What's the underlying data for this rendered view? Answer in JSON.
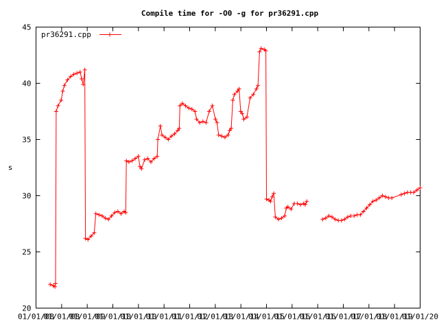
{
  "chart_data": {
    "type": "line",
    "title": "Compile time for -O0 -g for pr36291.cpp",
    "ylabel": "s",
    "xlabel": "",
    "ylim": [
      20,
      45
    ],
    "xlim": [
      0,
      12.2
    ],
    "y_ticks": [
      20,
      25,
      30,
      35,
      40,
      45
    ],
    "x_tick_labels": [
      "01/01/08",
      "01/01/08",
      "01/01/09",
      "01/01/10",
      "01/01/10",
      "01/01/11",
      "01/01/12",
      "01/01/13",
      "01/01/14",
      "01/01/15",
      "01/01/16",
      "01/01/16",
      "01/01/17",
      "01/01/18",
      "01/01/19",
      "01/01/20"
    ],
    "grid": false,
    "legend_position": "top-left",
    "series": [
      {
        "name": "pr36291.cpp",
        "color": "#ff0000",
        "segments": [
          [
            [
              0.45,
              22.1
            ],
            [
              0.55,
              22.0
            ],
            [
              0.6,
              21.9
            ],
            [
              0.62,
              22.2
            ],
            [
              0.64,
              37.5
            ],
            [
              0.7,
              38.0
            ],
            [
              0.8,
              38.5
            ],
            [
              0.85,
              39.3
            ],
            [
              0.9,
              39.8
            ],
            [
              1.0,
              40.3
            ],
            [
              1.1,
              40.6
            ],
            [
              1.2,
              40.8
            ],
            [
              1.3,
              40.9
            ],
            [
              1.4,
              41.0
            ],
            [
              1.45,
              40.4
            ],
            [
              1.5,
              39.9
            ],
            [
              1.55,
              41.2
            ],
            [
              1.57,
              26.2
            ],
            [
              1.65,
              26.1
            ],
            [
              1.75,
              26.4
            ],
            [
              1.85,
              26.7
            ],
            [
              1.9,
              28.4
            ],
            [
              2.0,
              28.3
            ],
            [
              2.1,
              28.2
            ],
            [
              2.2,
              28.0
            ],
            [
              2.3,
              27.9
            ],
            [
              2.4,
              28.2
            ],
            [
              2.5,
              28.5
            ],
            [
              2.6,
              28.6
            ],
            [
              2.7,
              28.4
            ],
            [
              2.8,
              28.6
            ],
            [
              2.85,
              28.5
            ],
            [
              2.87,
              33.1
            ],
            [
              2.95,
              33.0
            ],
            [
              3.05,
              33.1
            ],
            [
              3.15,
              33.3
            ],
            [
              3.25,
              33.5
            ],
            [
              3.3,
              32.6
            ],
            [
              3.35,
              32.4
            ],
            [
              3.45,
              33.2
            ],
            [
              3.55,
              33.3
            ],
            [
              3.65,
              33.0
            ],
            [
              3.75,
              33.3
            ],
            [
              3.85,
              33.5
            ],
            [
              3.87,
              35.0
            ],
            [
              3.95,
              36.2
            ],
            [
              4.0,
              35.4
            ],
            [
              4.1,
              35.2
            ],
            [
              4.2,
              35.0
            ],
            [
              4.3,
              35.3
            ],
            [
              4.4,
              35.5
            ],
            [
              4.5,
              35.8
            ],
            [
              4.55,
              36.0
            ],
            [
              4.57,
              38.0
            ],
            [
              4.65,
              38.2
            ],
            [
              4.75,
              38.0
            ],
            [
              4.85,
              37.8
            ],
            [
              4.95,
              37.7
            ],
            [
              5.05,
              37.5
            ],
            [
              5.1,
              36.8
            ],
            [
              5.2,
              36.5
            ],
            [
              5.3,
              36.6
            ],
            [
              5.4,
              36.5
            ],
            [
              5.5,
              37.5
            ],
            [
              5.6,
              38.0
            ],
            [
              5.7,
              36.8
            ],
            [
              5.75,
              36.5
            ],
            [
              5.8,
              35.4
            ],
            [
              5.9,
              35.3
            ],
            [
              6.0,
              35.2
            ],
            [
              6.1,
              35.4
            ],
            [
              6.15,
              35.8
            ],
            [
              6.2,
              36.0
            ],
            [
              6.25,
              38.5
            ],
            [
              6.3,
              39.0
            ],
            [
              6.4,
              39.3
            ],
            [
              6.45,
              39.5
            ],
            [
              6.5,
              37.5
            ],
            [
              6.55,
              37.3
            ],
            [
              6.6,
              36.8
            ],
            [
              6.7,
              37.0
            ],
            [
              6.8,
              38.7
            ],
            [
              6.9,
              39.0
            ],
            [
              7.0,
              39.5
            ],
            [
              7.05,
              39.8
            ],
            [
              7.1,
              42.8
            ],
            [
              7.15,
              43.1
            ],
            [
              7.25,
              43.0
            ],
            [
              7.3,
              42.9
            ],
            [
              7.32,
              29.7
            ],
            [
              7.4,
              29.6
            ],
            [
              7.45,
              29.5
            ],
            [
              7.5,
              29.9
            ],
            [
              7.55,
              30.2
            ],
            [
              7.6,
              28.1
            ],
            [
              7.7,
              27.9
            ],
            [
              7.8,
              28.0
            ],
            [
              7.9,
              28.2
            ],
            [
              7.95,
              28.9
            ],
            [
              8.0,
              29.0
            ],
            [
              8.1,
              28.8
            ],
            [
              8.2,
              29.3
            ],
            [
              8.3,
              29.3
            ],
            [
              8.4,
              29.2
            ],
            [
              8.5,
              29.3
            ],
            [
              8.55,
              29.2
            ],
            [
              8.6,
              29.5
            ]
          ],
          [
            [
              9.1,
              27.9
            ],
            [
              9.2,
              28.0
            ],
            [
              9.3,
              28.2
            ],
            [
              9.4,
              28.1
            ],
            [
              9.5,
              27.9
            ],
            [
              9.6,
              27.8
            ],
            [
              9.7,
              27.8
            ],
            [
              9.8,
              27.9
            ],
            [
              9.9,
              28.1
            ],
            [
              10.0,
              28.2
            ],
            [
              10.1,
              28.2
            ],
            [
              10.2,
              28.3
            ],
            [
              10.3,
              28.3
            ],
            [
              10.4,
              28.6
            ],
            [
              10.5,
              28.9
            ],
            [
              10.6,
              29.2
            ],
            [
              10.7,
              29.5
            ],
            [
              10.8,
              29.6
            ],
            [
              10.9,
              29.8
            ],
            [
              11.0,
              30.0
            ],
            [
              11.1,
              29.9
            ],
            [
              11.2,
              29.8
            ],
            [
              11.3,
              29.8
            ],
            [
              11.6,
              30.1
            ],
            [
              11.7,
              30.2
            ],
            [
              11.8,
              30.3
            ],
            [
              11.9,
              30.3
            ],
            [
              12.0,
              30.3
            ],
            [
              12.1,
              30.5
            ],
            [
              12.2,
              30.7
            ]
          ]
        ]
      }
    ]
  }
}
